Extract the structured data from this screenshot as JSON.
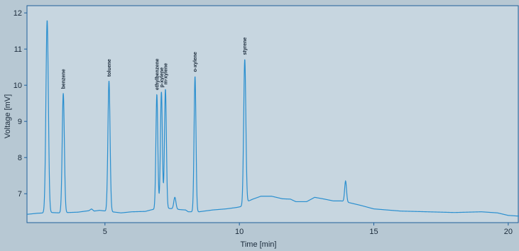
{
  "chart_data": {
    "type": "line",
    "xlabel": "Time [min]",
    "ylabel": "Voltage [mV]",
    "xlim": [
      2.1,
      20.4
    ],
    "ylim": [
      6.2,
      12.2
    ],
    "x_ticks": [
      5,
      10,
      15,
      20
    ],
    "y_ticks": [
      7,
      8,
      9,
      10,
      11,
      12
    ],
    "grid": false,
    "colors": {
      "line": "#2a8fcf",
      "plot_bg": "#c7d6e0",
      "frame": "#1f5f99"
    },
    "baseline": [
      [
        2.1,
        6.43
      ],
      [
        2.5,
        6.46
      ],
      [
        2.75,
        6.47
      ],
      [
        3.0,
        6.48
      ],
      [
        3.3,
        6.47
      ],
      [
        4.0,
        6.49
      ],
      [
        4.4,
        6.53
      ],
      [
        4.5,
        6.58
      ],
      [
        4.6,
        6.52
      ],
      [
        4.8,
        6.54
      ],
      [
        5.6,
        6.47
      ],
      [
        6.0,
        6.5
      ],
      [
        6.5,
        6.51
      ],
      [
        6.7,
        6.55
      ],
      [
        6.82,
        6.57
      ],
      [
        7.05,
        6.7
      ],
      [
        7.3,
        6.6
      ],
      [
        7.55,
        6.58
      ],
      [
        7.8,
        6.56
      ],
      [
        8.0,
        6.55
      ],
      [
        8.1,
        6.5
      ],
      [
        8.5,
        6.5
      ],
      [
        9.0,
        6.55
      ],
      [
        9.5,
        6.58
      ],
      [
        9.9,
        6.62
      ],
      [
        10.1,
        6.65
      ],
      [
        10.35,
        6.8
      ],
      [
        10.5,
        6.85
      ],
      [
        10.8,
        6.93
      ],
      [
        11.2,
        6.93
      ],
      [
        11.6,
        6.86
      ],
      [
        11.9,
        6.85
      ],
      [
        12.1,
        6.78
      ],
      [
        12.5,
        6.78
      ],
      [
        12.8,
        6.9
      ],
      [
        13.1,
        6.86
      ],
      [
        13.5,
        6.8
      ],
      [
        13.8,
        6.8
      ],
      [
        14.1,
        6.75
      ],
      [
        14.5,
        6.68
      ],
      [
        15.0,
        6.58
      ],
      [
        15.5,
        6.55
      ],
      [
        16.0,
        6.52
      ],
      [
        17.0,
        6.5
      ],
      [
        18.0,
        6.48
      ],
      [
        19.0,
        6.5
      ],
      [
        19.6,
        6.47
      ],
      [
        20.0,
        6.4
      ],
      [
        20.4,
        6.38
      ]
    ],
    "peaks": [
      {
        "label": "",
        "x": 2.85,
        "y": 11.8,
        "width": 0.045
      },
      {
        "label": "benzene",
        "x": 3.45,
        "y": 9.78,
        "width": 0.04
      },
      {
        "label": "toluene",
        "x": 5.15,
        "y": 10.12,
        "width": 0.04
      },
      {
        "label": "ethylbenzene",
        "x": 6.93,
        "y": 9.75,
        "width": 0.035
      },
      {
        "label": "p-xylene",
        "x": 7.1,
        "y": 9.82,
        "width": 0.035
      },
      {
        "label": "m-xylene",
        "x": 7.25,
        "y": 9.9,
        "width": 0.035
      },
      {
        "label": "",
        "x": 7.6,
        "y": 6.9,
        "width": 0.04
      },
      {
        "label": "o-xylene",
        "x": 8.35,
        "y": 10.25,
        "width": 0.035
      },
      {
        "label": "styrene",
        "x": 10.2,
        "y": 10.72,
        "width": 0.04
      },
      {
        "label": "",
        "x": 13.95,
        "y": 7.35,
        "width": 0.035
      }
    ]
  }
}
